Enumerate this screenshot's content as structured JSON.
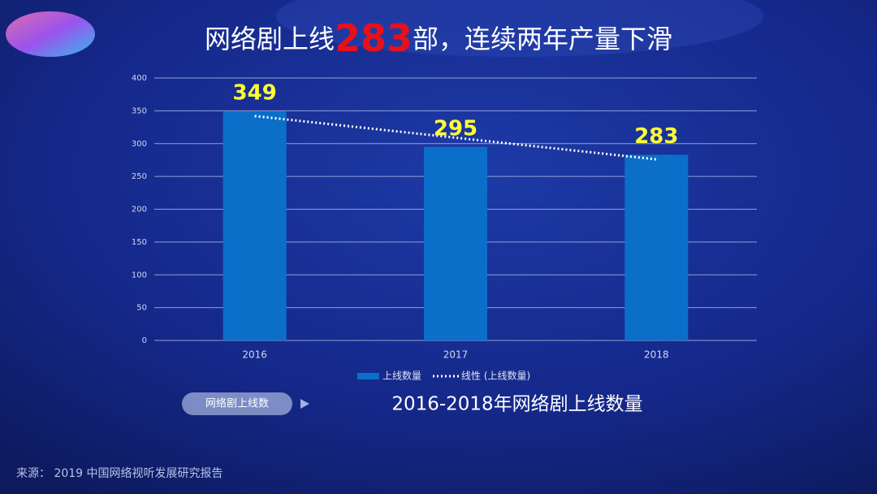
{
  "chart_data": {
    "type": "bar",
    "title_parts": [
      "网络剧上线",
      "283",
      "部，连续两年产量下滑"
    ],
    "title_highlight_color": "#e8101a",
    "categories": [
      "2016",
      "2017",
      "2018"
    ],
    "series": [
      {
        "name": "上线数量",
        "color": "#0b6fca",
        "values": [
          349,
          295,
          283
        ]
      },
      {
        "name": "线性 (上线数量)",
        "type": "line",
        "style": "dotted",
        "color": "#ffffff",
        "values": [
          342,
          309,
          276
        ]
      }
    ],
    "value_label_color": "#ffff33",
    "ylim": [
      0,
      400
    ],
    "yticks": [
      0,
      50,
      100,
      150,
      200,
      250,
      300,
      350,
      400
    ],
    "grid": true,
    "legend": "bottom",
    "button_label": "网络剧上线数",
    "subtitle": "2016-2018年网络剧上线数量",
    "source": "来源： 2019 中国网络视听发展研究报告"
  }
}
